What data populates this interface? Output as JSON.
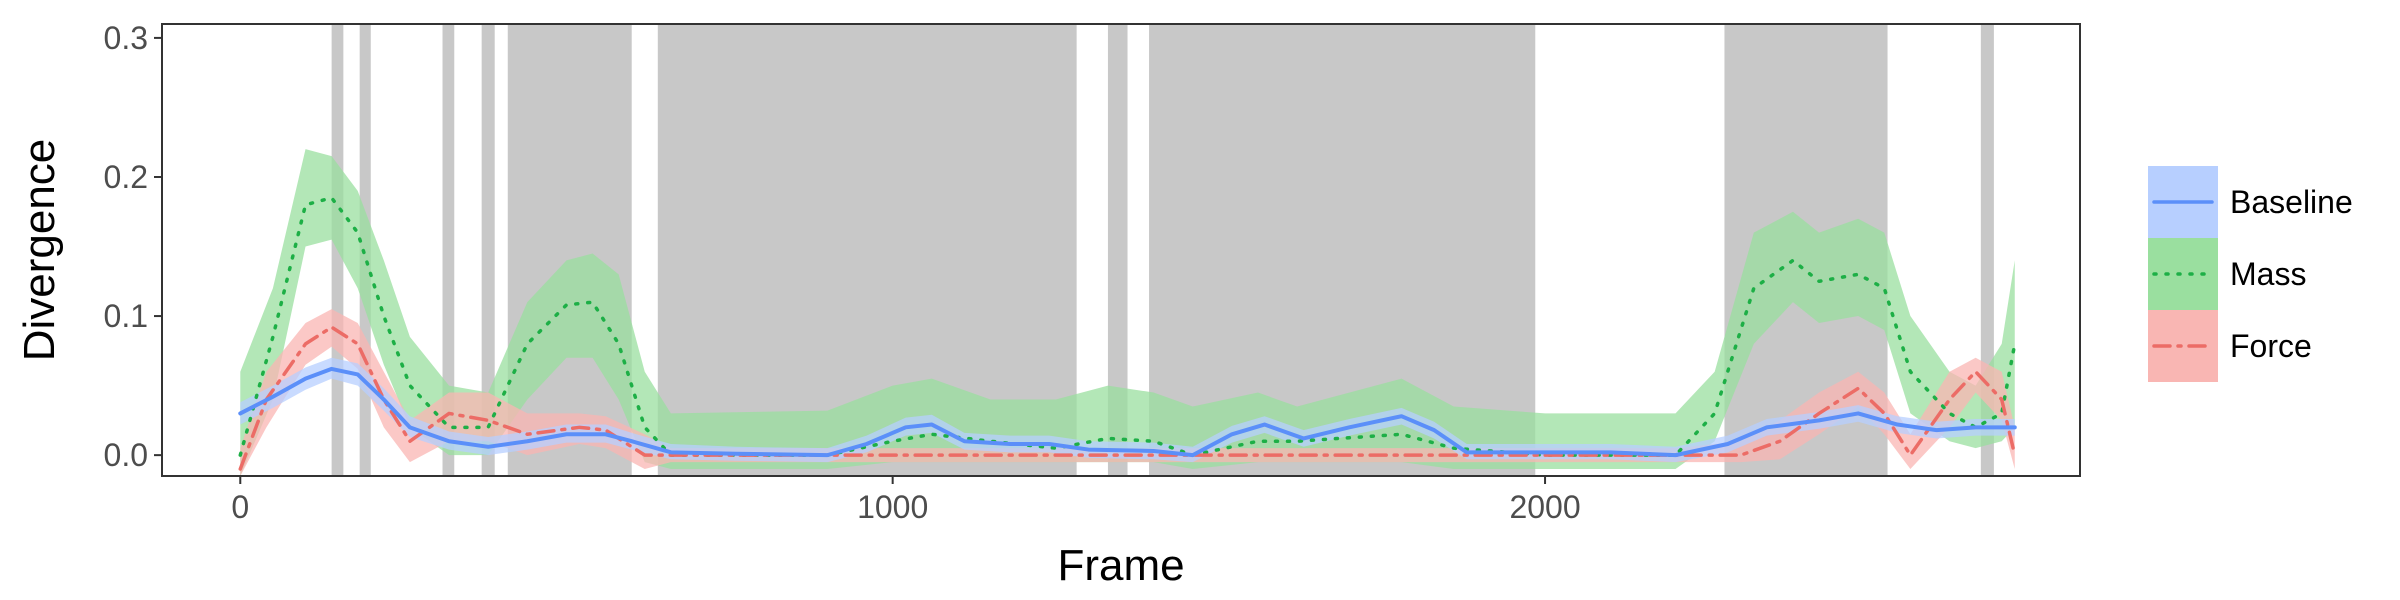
{
  "chart_data": {
    "type": "line",
    "title": "",
    "xlabel": "Frame",
    "ylabel": "Divergence",
    "xlim": [
      -120,
      2820
    ],
    "ylim": [
      -0.015,
      0.31
    ],
    "x_ticks": [
      0,
      1000,
      2000
    ],
    "x_tick_labels": [
      "0",
      "1000",
      "2000"
    ],
    "y_ticks": [
      0,
      0.1,
      0.2,
      0.3
    ],
    "y_tick_labels": [
      "0.0",
      "0.1",
      "0.2",
      "0.3"
    ],
    "grid": false,
    "legend_position": "right",
    "shaded_regions": [
      [
        140,
        158
      ],
      [
        183,
        200
      ],
      [
        310,
        328
      ],
      [
        370,
        390
      ],
      [
        410,
        600
      ],
      [
        640,
        1282
      ],
      [
        1330,
        1360
      ],
      [
        1393,
        1985
      ],
      [
        2275,
        2525
      ],
      [
        2668,
        2688
      ]
    ],
    "series": [
      {
        "name": "Baseline",
        "color": "#619CFF",
        "line_color": "#5B8FF9",
        "fill_color": "#B7CFFF",
        "dash": "solid",
        "points": [
          [
            0,
            0.03,
            0.022,
            0.038
          ],
          [
            50,
            0.042,
            0.034,
            0.05
          ],
          [
            100,
            0.055,
            0.047,
            0.063
          ],
          [
            140,
            0.062,
            0.055,
            0.07
          ],
          [
            180,
            0.058,
            0.05,
            0.066
          ],
          [
            220,
            0.04,
            0.032,
            0.048
          ],
          [
            260,
            0.02,
            0.013,
            0.028
          ],
          [
            320,
            0.01,
            0.004,
            0.017
          ],
          [
            380,
            0.006,
            0.0,
            0.013
          ],
          [
            440,
            0.01,
            0.004,
            0.017
          ],
          [
            500,
            0.015,
            0.009,
            0.022
          ],
          [
            560,
            0.015,
            0.009,
            0.022
          ],
          [
            600,
            0.01,
            0.004,
            0.016
          ],
          [
            660,
            0.002,
            -0.003,
            0.008
          ],
          [
            760,
            0.001,
            -0.004,
            0.006
          ],
          [
            900,
            0.0,
            -0.005,
            0.005
          ],
          [
            960,
            0.008,
            0.002,
            0.014
          ],
          [
            1020,
            0.02,
            0.014,
            0.027
          ],
          [
            1060,
            0.022,
            0.016,
            0.029
          ],
          [
            1110,
            0.01,
            0.004,
            0.016
          ],
          [
            1180,
            0.008,
            0.002,
            0.014
          ],
          [
            1240,
            0.008,
            0.002,
            0.014
          ],
          [
            1300,
            0.004,
            -0.002,
            0.01
          ],
          [
            1400,
            0.003,
            -0.003,
            0.009
          ],
          [
            1460,
            0.0,
            -0.005,
            0.006
          ],
          [
            1520,
            0.015,
            0.009,
            0.021
          ],
          [
            1570,
            0.022,
            0.016,
            0.028
          ],
          [
            1630,
            0.012,
            0.006,
            0.018
          ],
          [
            1700,
            0.02,
            0.014,
            0.026
          ],
          [
            1780,
            0.028,
            0.022,
            0.034
          ],
          [
            1830,
            0.018,
            0.012,
            0.024
          ],
          [
            1880,
            0.002,
            -0.003,
            0.008
          ],
          [
            2000,
            0.002,
            -0.003,
            0.008
          ],
          [
            2100,
            0.002,
            -0.003,
            0.008
          ],
          [
            2200,
            0.0,
            -0.005,
            0.006
          ],
          [
            2280,
            0.008,
            0.002,
            0.014
          ],
          [
            2340,
            0.02,
            0.014,
            0.026
          ],
          [
            2420,
            0.025,
            0.019,
            0.031
          ],
          [
            2480,
            0.03,
            0.024,
            0.036
          ],
          [
            2540,
            0.022,
            0.016,
            0.028
          ],
          [
            2600,
            0.018,
            0.012,
            0.024
          ],
          [
            2660,
            0.02,
            0.014,
            0.026
          ],
          [
            2720,
            0.02,
            0.014,
            0.026
          ]
        ]
      },
      {
        "name": "Mass",
        "color": "#00BA38",
        "line_color": "#1DAF46",
        "fill_color": "#9ADF9F",
        "dash": "dotted",
        "points": [
          [
            0,
            0.0,
            -0.015,
            0.06
          ],
          [
            50,
            0.085,
            0.04,
            0.12
          ],
          [
            100,
            0.18,
            0.15,
            0.22
          ],
          [
            140,
            0.185,
            0.155,
            0.215
          ],
          [
            180,
            0.16,
            0.12,
            0.19
          ],
          [
            220,
            0.1,
            0.065,
            0.14
          ],
          [
            260,
            0.05,
            0.02,
            0.085
          ],
          [
            320,
            0.02,
            0.0,
            0.05
          ],
          [
            380,
            0.02,
            0.0,
            0.045
          ],
          [
            440,
            0.08,
            0.04,
            0.11
          ],
          [
            500,
            0.108,
            0.07,
            0.14
          ],
          [
            540,
            0.11,
            0.07,
            0.145
          ],
          [
            580,
            0.08,
            0.04,
            0.13
          ],
          [
            620,
            0.02,
            -0.005,
            0.06
          ],
          [
            660,
            0.0,
            -0.01,
            0.03
          ],
          [
            900,
            0.0,
            -0.01,
            0.032
          ],
          [
            1000,
            0.01,
            -0.005,
            0.05
          ],
          [
            1060,
            0.015,
            -0.005,
            0.055
          ],
          [
            1150,
            0.01,
            -0.005,
            0.04
          ],
          [
            1250,
            0.005,
            -0.005,
            0.04
          ],
          [
            1330,
            0.012,
            -0.005,
            0.05
          ],
          [
            1400,
            0.01,
            -0.005,
            0.045
          ],
          [
            1460,
            0.0,
            -0.01,
            0.035
          ],
          [
            1560,
            0.01,
            -0.005,
            0.045
          ],
          [
            1620,
            0.01,
            -0.005,
            0.035
          ],
          [
            1780,
            0.015,
            -0.005,
            0.055
          ],
          [
            1860,
            0.005,
            -0.01,
            0.035
          ],
          [
            2000,
            0.0,
            -0.01,
            0.03
          ],
          [
            2200,
            0.0,
            -0.01,
            0.03
          ],
          [
            2260,
            0.03,
            0.01,
            0.06
          ],
          [
            2320,
            0.12,
            0.08,
            0.16
          ],
          [
            2380,
            0.14,
            0.11,
            0.175
          ],
          [
            2420,
            0.125,
            0.095,
            0.16
          ],
          [
            2480,
            0.13,
            0.1,
            0.17
          ],
          [
            2520,
            0.12,
            0.09,
            0.16
          ],
          [
            2560,
            0.06,
            0.03,
            0.1
          ],
          [
            2620,
            0.03,
            0.01,
            0.06
          ],
          [
            2660,
            0.02,
            0.005,
            0.05
          ],
          [
            2700,
            0.03,
            0.01,
            0.08
          ],
          [
            2720,
            0.08,
            0.02,
            0.14
          ]
        ]
      },
      {
        "name": "Force",
        "color": "#F8766D",
        "line_color": "#EC6C66",
        "fill_color": "#F9B6B3",
        "dash": "dashdot",
        "points": [
          [
            0,
            -0.01,
            -0.015,
            0.005
          ],
          [
            40,
            0.04,
            0.02,
            0.06
          ],
          [
            100,
            0.08,
            0.065,
            0.095
          ],
          [
            140,
            0.092,
            0.078,
            0.105
          ],
          [
            180,
            0.08,
            0.062,
            0.095
          ],
          [
            220,
            0.04,
            0.02,
            0.06
          ],
          [
            260,
            0.01,
            -0.005,
            0.025
          ],
          [
            320,
            0.03,
            0.01,
            0.045
          ],
          [
            380,
            0.025,
            0.01,
            0.045
          ],
          [
            440,
            0.015,
            0.0,
            0.03
          ],
          [
            520,
            0.02,
            0.008,
            0.03
          ],
          [
            560,
            0.018,
            0.005,
            0.028
          ],
          [
            620,
            0.0,
            -0.01,
            0.015
          ],
          [
            660,
            0.0,
            -0.005,
            0.005
          ],
          [
            2200,
            0.0,
            -0.005,
            0.005
          ],
          [
            2300,
            0.0,
            -0.005,
            0.01
          ],
          [
            2360,
            0.01,
            -0.003,
            0.025
          ],
          [
            2420,
            0.03,
            0.015,
            0.045
          ],
          [
            2480,
            0.048,
            0.035,
            0.06
          ],
          [
            2520,
            0.03,
            0.015,
            0.045
          ],
          [
            2560,
            0.0,
            -0.01,
            0.015
          ],
          [
            2620,
            0.04,
            0.02,
            0.06
          ],
          [
            2660,
            0.06,
            0.045,
            0.07
          ],
          [
            2700,
            0.04,
            0.025,
            0.06
          ],
          [
            2720,
            0.0,
            -0.01,
            0.02
          ]
        ]
      }
    ]
  }
}
